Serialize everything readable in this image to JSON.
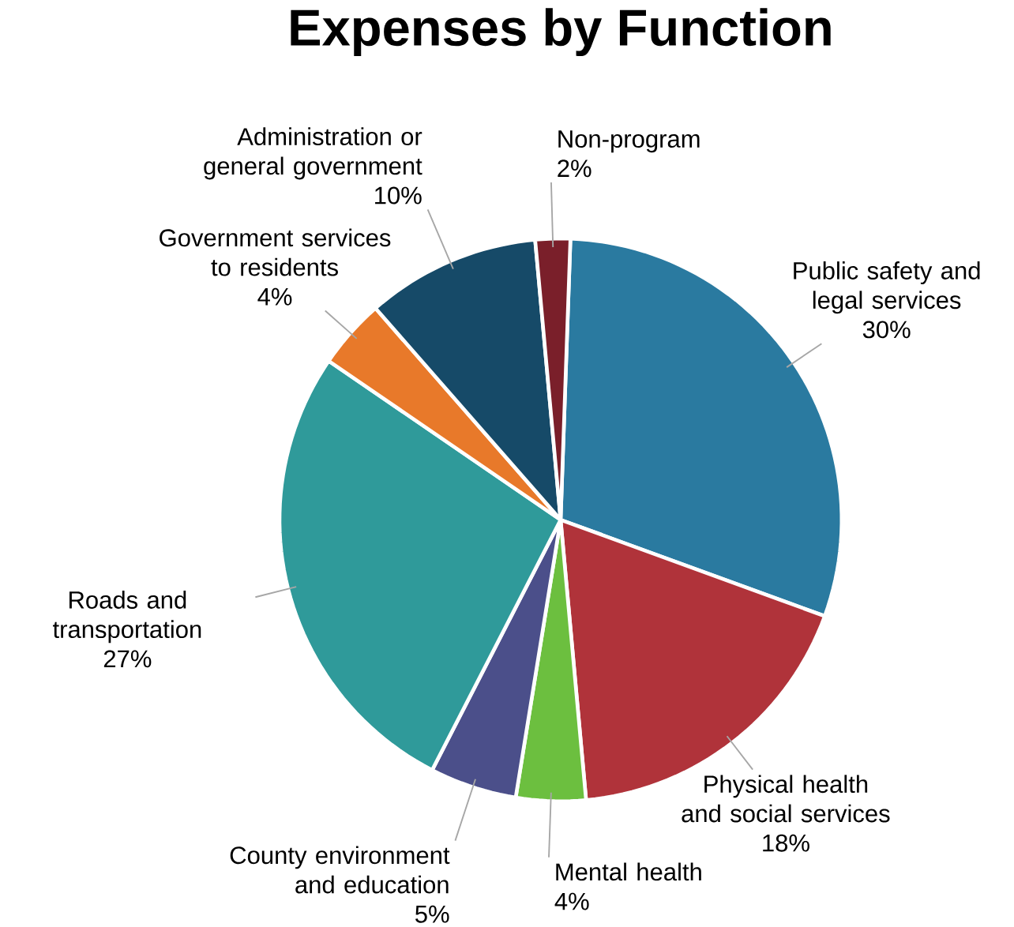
{
  "chart_data": {
    "type": "pie",
    "title": "Expenses by Function",
    "categories": [
      "Public safety and legal services",
      "Physical health and social services",
      "Mental health",
      "County environment and education",
      "Roads and transportation",
      "Government services to residents",
      "Administration or general government",
      "Non-program"
    ],
    "values": [
      30,
      18,
      4,
      5,
      27,
      4,
      10,
      2
    ],
    "value_labels": [
      "30%",
      "18%",
      "4%",
      "5%",
      "27%",
      "4%",
      "10%",
      "2%"
    ],
    "colors": [
      "#2a7aa0",
      "#b0333a",
      "#6cbf3f",
      "#4b4f8a",
      "#2f9a9a",
      "#e8792a",
      "#164a68",
      "#7a1f2a"
    ]
  }
}
